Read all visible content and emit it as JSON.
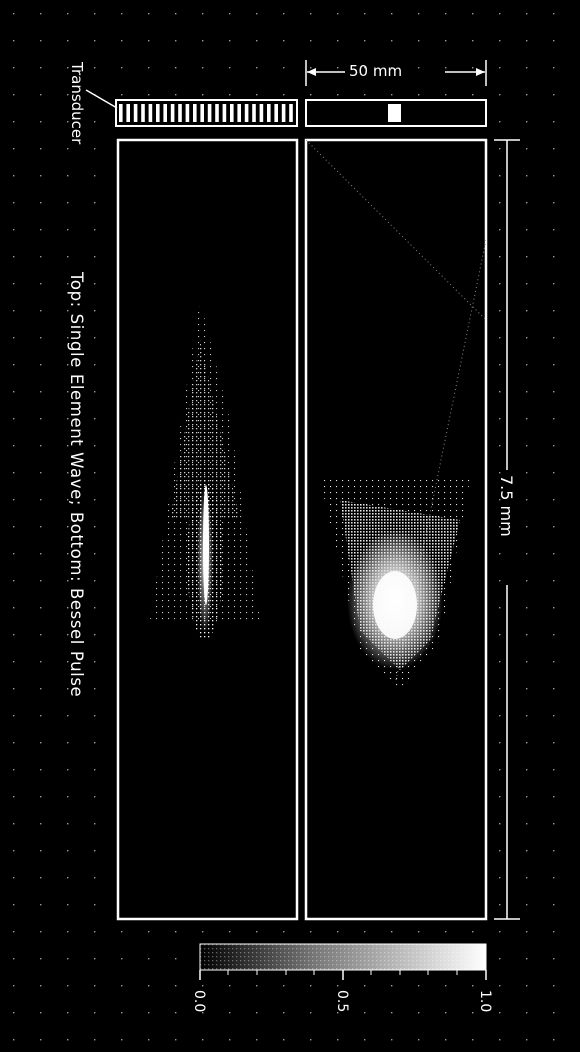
{
  "labels": {
    "transducer": "Transducer",
    "caption": "Top: Single Element Wave; Bottom: Bessel Pulse",
    "width_dim": "50 mm",
    "depth_dim": "7.5 mm"
  },
  "colorbar": {
    "min_label": "0.0",
    "mid_label": "0.5",
    "max_label": "1.0",
    "range": [
      0.0,
      1.0
    ]
  },
  "colors": {
    "background": "#000000",
    "foreground": "#ffffff"
  }
}
